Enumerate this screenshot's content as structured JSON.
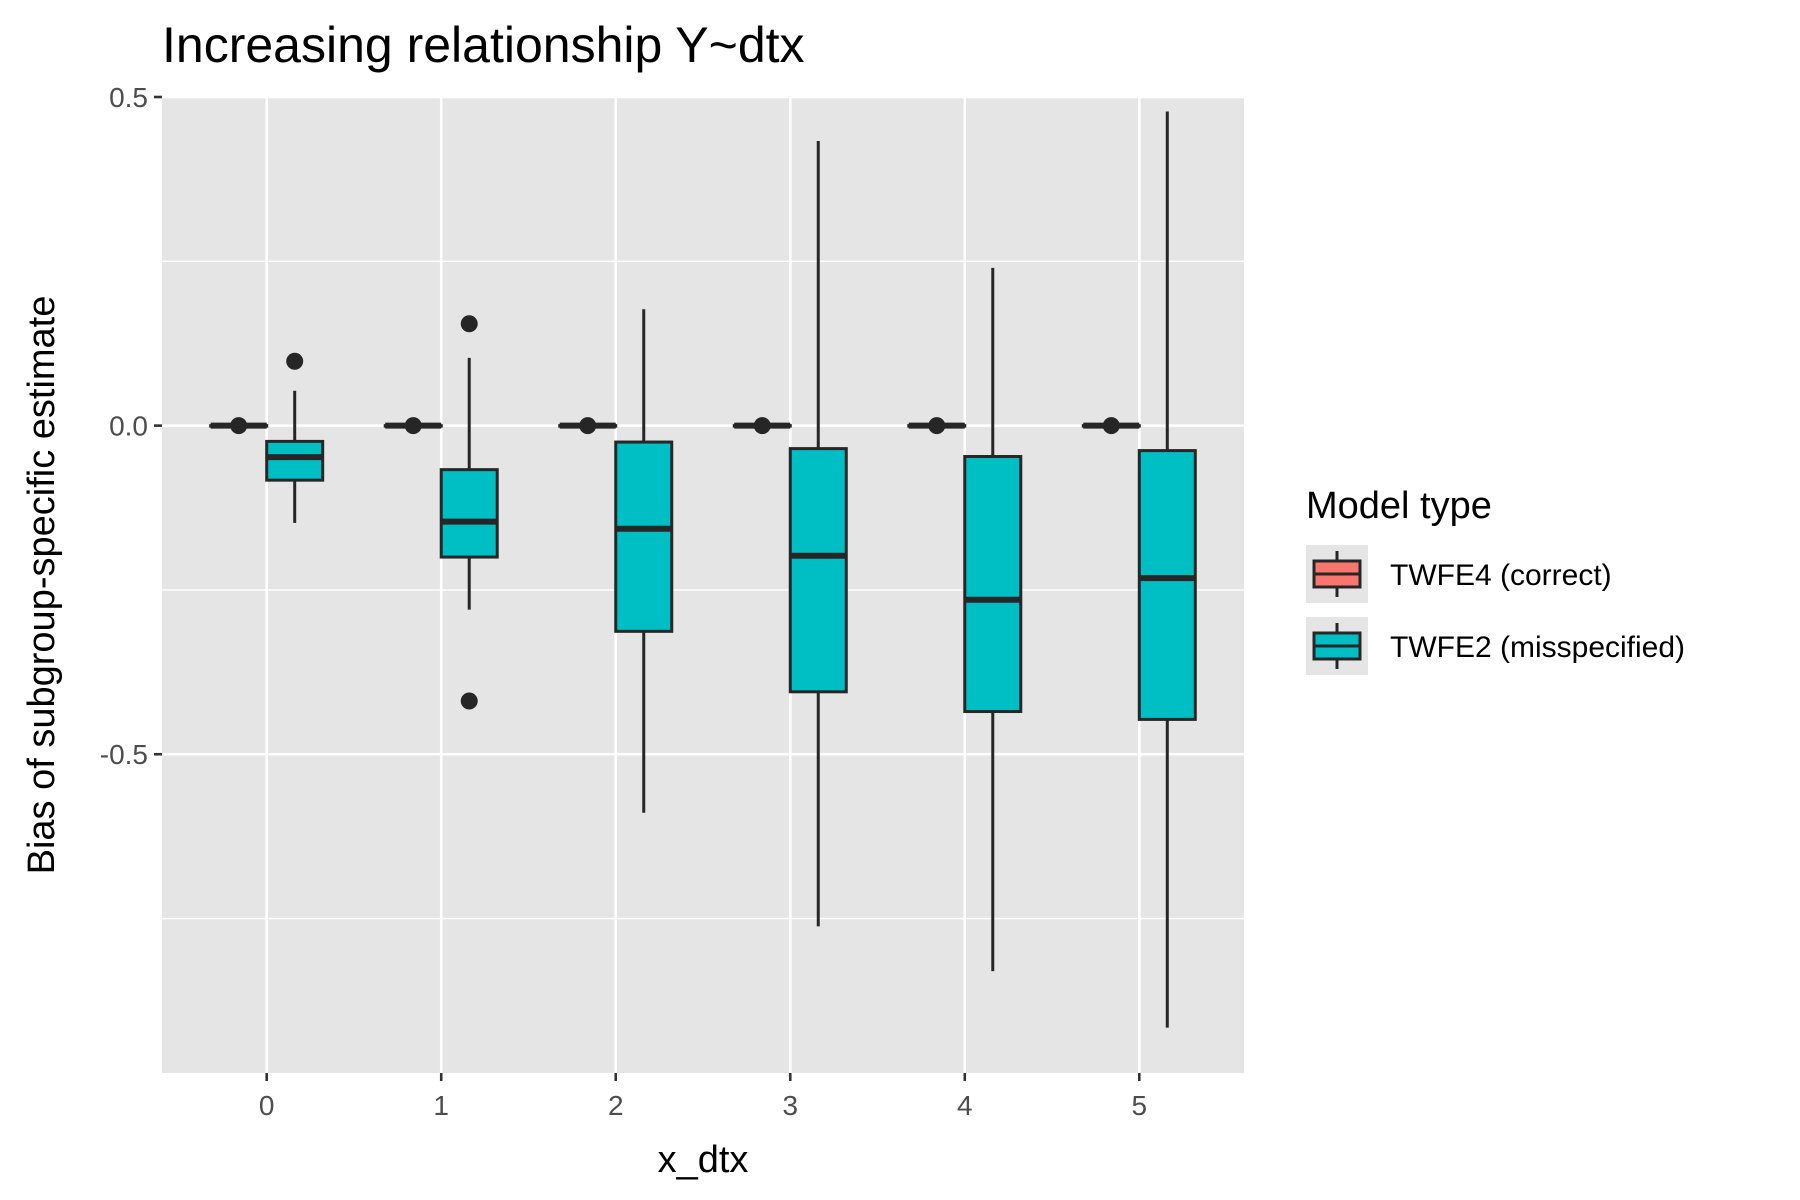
{
  "chart_data": {
    "type": "boxplot",
    "title": "Increasing relationship Y~dtx",
    "xlabel": "x_dtx",
    "ylabel": "Bias of subgroup-specific estimate",
    "categories": [
      "0",
      "1",
      "2",
      "3",
      "4",
      "5"
    ],
    "ylim": [
      -0.985,
      0.5
    ],
    "yticks": [
      {
        "value": 0.5,
        "label": "0.5"
      },
      {
        "value": 0.0,
        "label": "0.0"
      },
      {
        "value": -0.5,
        "label": "-0.5"
      }
    ],
    "y_minor_gridlines": [
      0.25,
      -0.25,
      -0.75
    ],
    "grid": true,
    "legend": {
      "title": "Model type",
      "position": "right"
    },
    "colors": {
      "panel_bg": "#e5e5e5",
      "grid": "#ffffff",
      "box_outline": "#262626",
      "tick_label": "#4d4d4d"
    },
    "series": [
      {
        "name": "TWFE4 (correct)",
        "color": "#f8766d",
        "boxes": [
          {
            "q1": 0,
            "median": 0,
            "q3": 0,
            "whisker_low": 0,
            "whisker_high": 0,
            "outliers": [
              0
            ]
          },
          {
            "q1": 0,
            "median": 0,
            "q3": 0,
            "whisker_low": 0,
            "whisker_high": 0,
            "outliers": [
              0
            ]
          },
          {
            "q1": 0,
            "median": 0,
            "q3": 0,
            "whisker_low": 0,
            "whisker_high": 0,
            "outliers": [
              0
            ]
          },
          {
            "q1": 0,
            "median": 0,
            "q3": 0,
            "whisker_low": 0,
            "whisker_high": 0,
            "outliers": [
              0
            ]
          },
          {
            "q1": 0,
            "median": 0,
            "q3": 0,
            "whisker_low": 0,
            "whisker_high": 0,
            "outliers": [
              0
            ]
          },
          {
            "q1": 0,
            "median": 0,
            "q3": 0,
            "whisker_low": 0,
            "whisker_high": 0,
            "outliers": [
              0
            ]
          }
        ]
      },
      {
        "name": "TWFE2 (misspecified)",
        "color": "#00bfc4",
        "boxes": [
          {
            "q1": -0.083,
            "median": -0.048,
            "q3": -0.024,
            "whisker_low": -0.148,
            "whisker_high": 0.053,
            "outliers": [
              0.098
            ]
          },
          {
            "q1": -0.2,
            "median": -0.146,
            "q3": -0.067,
            "whisker_low": -0.28,
            "whisker_high": 0.103,
            "outliers": [
              0.155,
              -0.419
            ]
          },
          {
            "q1": -0.313,
            "median": -0.157,
            "q3": -0.025,
            "whisker_low": -0.589,
            "whisker_high": 0.177,
            "outliers": []
          },
          {
            "q1": -0.405,
            "median": -0.198,
            "q3": -0.035,
            "whisker_low": -0.762,
            "whisker_high": 0.433,
            "outliers": []
          },
          {
            "q1": -0.435,
            "median": -0.265,
            "q3": -0.047,
            "whisker_low": -0.83,
            "whisker_high": 0.24,
            "outliers": []
          },
          {
            "q1": -0.447,
            "median": -0.232,
            "q3": -0.038,
            "whisker_low": -0.916,
            "whisker_high": 0.478,
            "outliers": []
          }
        ]
      }
    ]
  }
}
